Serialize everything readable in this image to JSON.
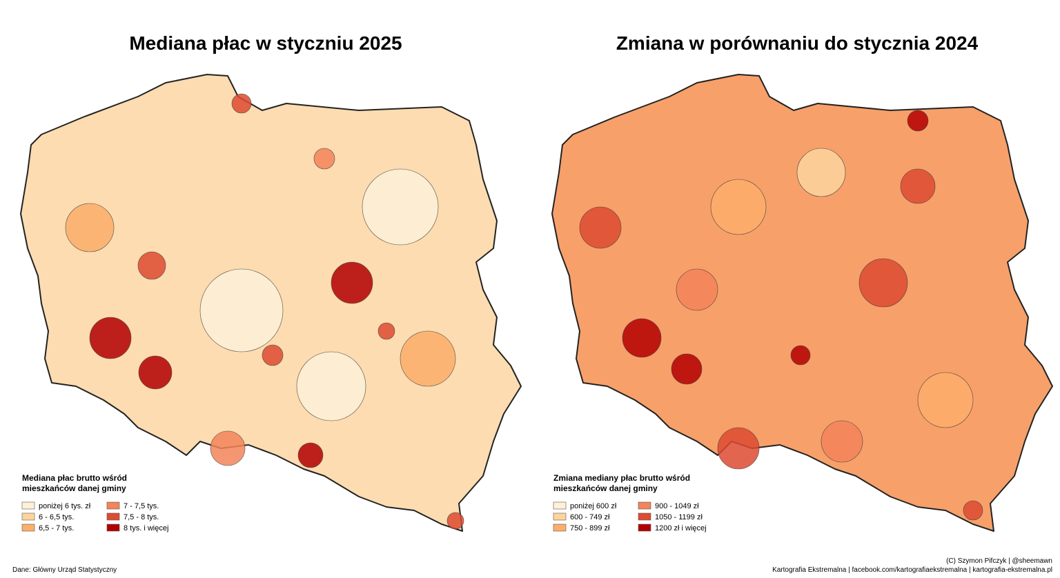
{
  "maps": [
    {
      "title": "Mediana płac w styczniu 2025",
      "legend": {
        "title_lines": [
          "Mediana płac brutto wśród",
          "mieszkańców danej gminy"
        ],
        "items": [
          {
            "label": "poniżej 6 tys. zł",
            "color": "#fef0d9"
          },
          {
            "label": "6 - 6,5 tys.",
            "color": "#fdd49e"
          },
          {
            "label": "6,5 - 7 tys.",
            "color": "#fdae6b"
          },
          {
            "label": "7 - 7,5 tys.",
            "color": "#f4845a"
          },
          {
            "label": "7,5 - 8 tys.",
            "color": "#de4b32"
          },
          {
            "label": "8 tys.  i więcej",
            "color": "#b30000"
          }
        ]
      }
    },
    {
      "title": "Zmiana w porównaniu do stycznia 2024",
      "legend": {
        "title_lines": [
          "Zmiana mediany płac brutto wśród",
          "mieszkańców danej gminy"
        ],
        "items": [
          {
            "label": "poniżej 600 zł",
            "color": "#fef0d9"
          },
          {
            "label": "600 - 749 zł",
            "color": "#fdd49e"
          },
          {
            "label": "750 - 899 zł",
            "color": "#fdae6b"
          },
          {
            "label": "900 - 1049 zł",
            "color": "#f4845a"
          },
          {
            "label": "1050 - 1199 zł",
            "color": "#de4b32"
          },
          {
            "label": "1200 zł i więcej",
            "color": "#b30000"
          }
        ]
      }
    }
  ],
  "footer": {
    "source": "Dane: Główny Urząd Statystyczny",
    "credit": "(C) Szymon Pifczyk | @sheemawn",
    "links": "Kartografia Ekstremalna | facebook.com/kartografiaekstremalna | kartografia-ekstremalna.pl"
  }
}
